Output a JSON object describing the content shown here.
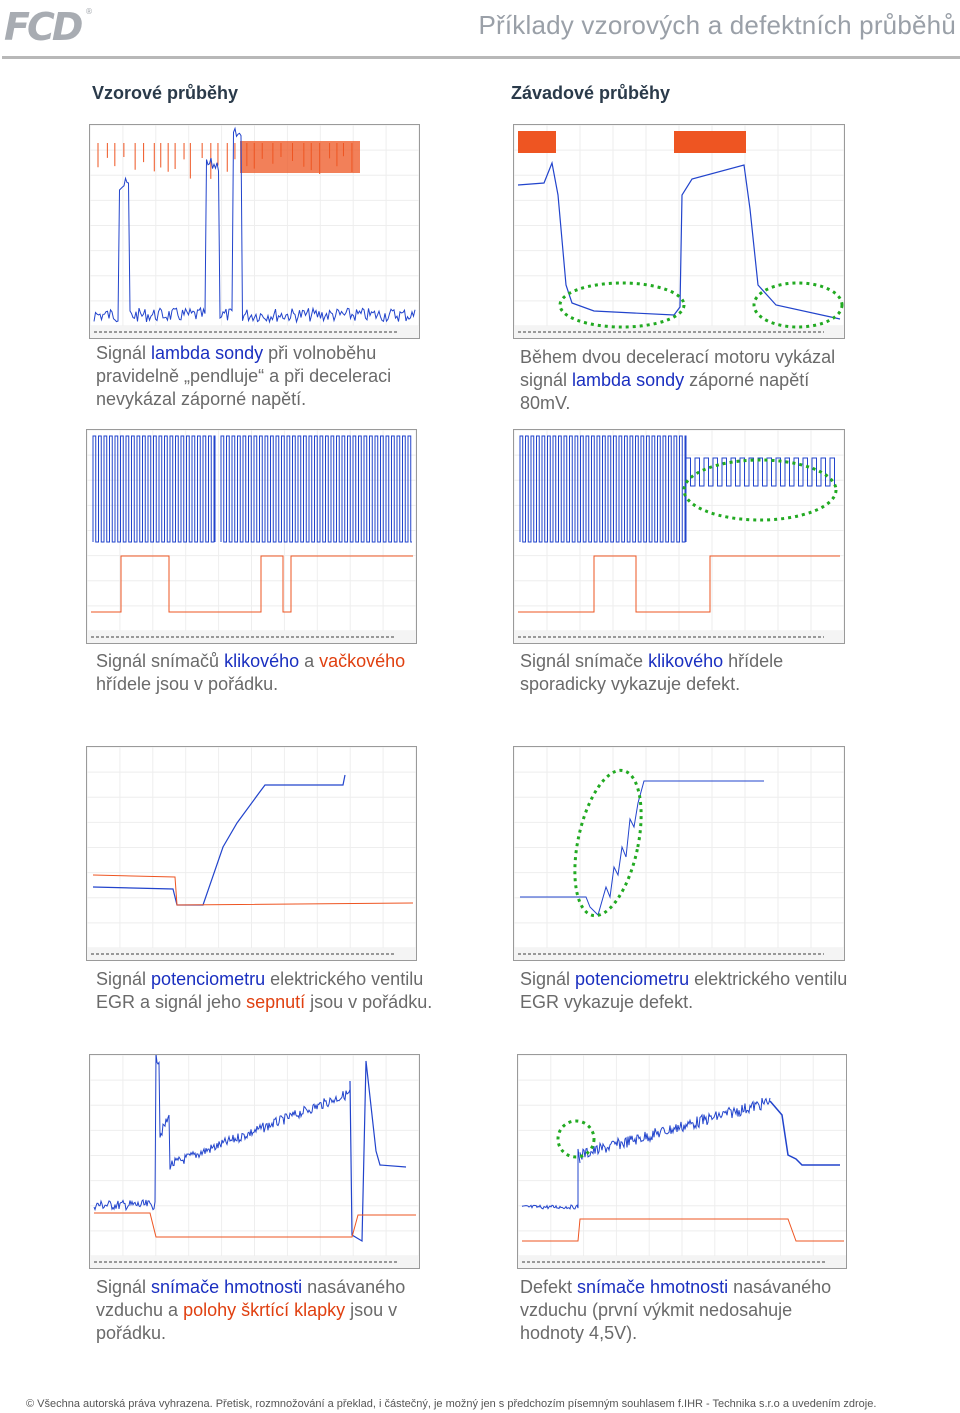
{
  "header": {
    "logo_text": "FCD",
    "title": "Příklady vzorových a defektních průběhů"
  },
  "columns": {
    "left": "Vzorové průběhy",
    "right": "Závadové průběhy"
  },
  "colors": {
    "trace_blue": "#2244cc",
    "trace_orange": "#ee5522",
    "highlight_green": "#22aa22",
    "keyword_blue": "#1a2fc0",
    "keyword_red": "#e04010"
  },
  "captions": {
    "c1": {
      "p1": "Signál ",
      "k1": "lambda sondy",
      "p2": " při volnoběhu pravidelně „pendluje“ a při deceleraci nevykázal záporné napětí."
    },
    "c2": {
      "p1": "Během dvou decelerací motoru vykázal signál ",
      "k1": "lambda sondy",
      "p2": " záporné napětí 80mV."
    },
    "c3": {
      "p1": "Signál snímačů ",
      "k1": "klikového",
      "p2": " a ",
      "k2": "vačkového",
      "p3": " hřídele jsou v pořádku."
    },
    "c4": {
      "p1": "Signál snímače ",
      "k1": "klikového",
      "p2": " hřídele sporadicky vykazuje defekt."
    },
    "c5": {
      "p1": "Signál ",
      "k1": "potenciometru",
      "p2": " elektrického ventilu EGR a signál jeho ",
      "k2": "sepnutí",
      "p3": " jsou v pořádku."
    },
    "c6": {
      "p1": "Signál ",
      "k1": "potenciometru",
      "p2": " elektrického ventilu EGR vykazuje defekt."
    },
    "c7": {
      "p1": "Signál ",
      "k1": "snímače hmotnosti",
      "p2": " nasávaného vzduchu a ",
      "k2": "polohy škrtící klapky",
      "p3": " jsou v pořádku."
    },
    "c8": {
      "p1": "Defekt ",
      "k1": "snímače hmotnosti",
      "p2": " nasávaného vzduchu (první výkmit nedosahuje hodnoty 4,5V)."
    }
  },
  "footer": "© Všechna autorská práva vyhrazena. Přetisk, rozmnožování a překlad, i částečný, je možný jen s předchozím písemným souhlasem f.IHR - Technika s.r.o a uvedením zdroje."
}
